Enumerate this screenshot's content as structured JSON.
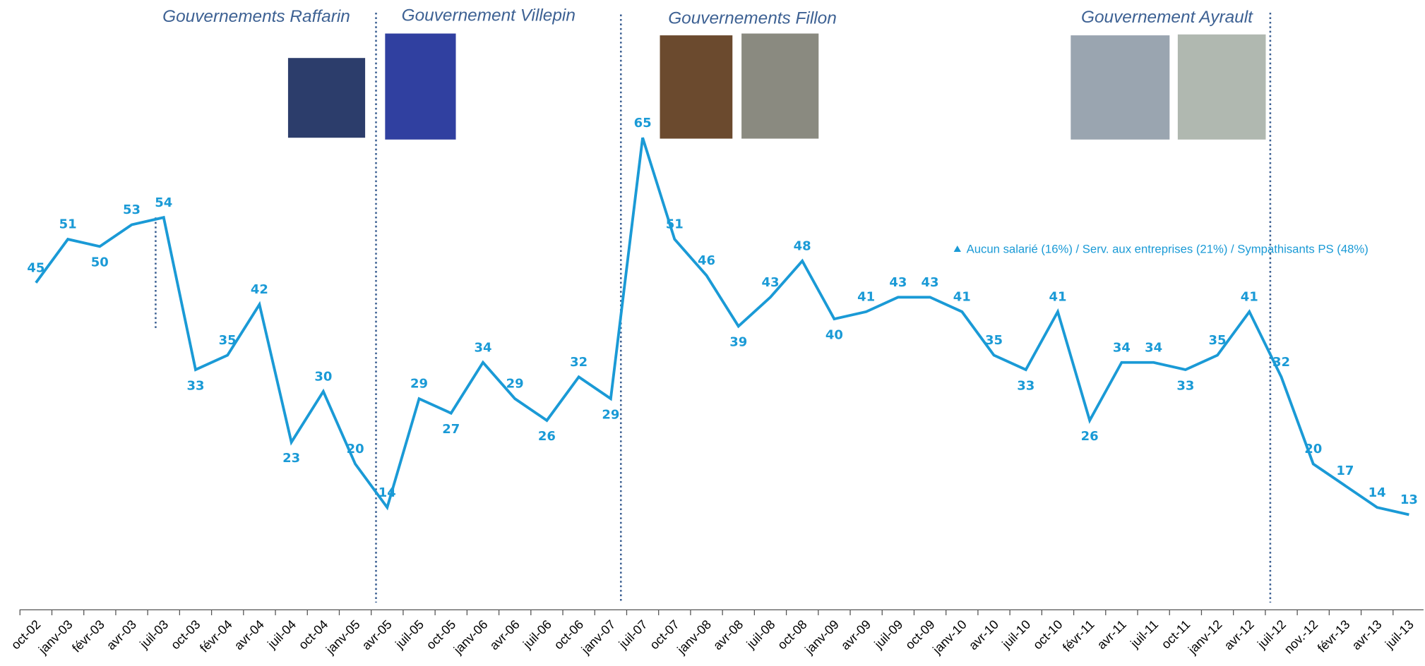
{
  "chart_data": {
    "type": "line",
    "annotations": [
      "Gouvernements Raffarin",
      "Gouvernement Villepin",
      "Gouvernements Fillon",
      "Gouvernement Ayrault"
    ],
    "categories": [
      "oct-02",
      "janv-03",
      "févr-03",
      "avr-03",
      "juil-03",
      "oct-03",
      "févr-04",
      "avr-04",
      "juil-04",
      "oct-04",
      "janv-05",
      "avr-05",
      "juil-05",
      "oct-05",
      "janv-06",
      "avr-06",
      "juil-06",
      "oct-06",
      "janv-07",
      "juil-07",
      "oct-07",
      "janv-08",
      "avr-08",
      "juil-08",
      "oct-08",
      "janv-09",
      "avr-09",
      "juil-09",
      "oct-09",
      "janv-10",
      "avr-10",
      "juil-10",
      "oct-10",
      "févr-11",
      "avr-11",
      "juil-11",
      "oct-11",
      "janv-12",
      "avr-12",
      "juil-12",
      "nov.-12",
      "févr-13",
      "avr-13",
      "juil-13"
    ],
    "series": [
      {
        "name": "Aucun salarié (16%) / Serv. aux entreprises (21%) / Sympathisants PS (48%)",
        "color": "#1a9ad6",
        "values": [
          45,
          51,
          50,
          53,
          54,
          33,
          35,
          42,
          23,
          30,
          20,
          14,
          29,
          27,
          34,
          29,
          26,
          32,
          29,
          65,
          51,
          46,
          39,
          43,
          48,
          40,
          41,
          43,
          43,
          41,
          35,
          33,
          41,
          26,
          34,
          34,
          33,
          35,
          41,
          32,
          20,
          17,
          14,
          13
        ]
      }
    ],
    "ylim": [
      0,
      84
    ]
  }
}
